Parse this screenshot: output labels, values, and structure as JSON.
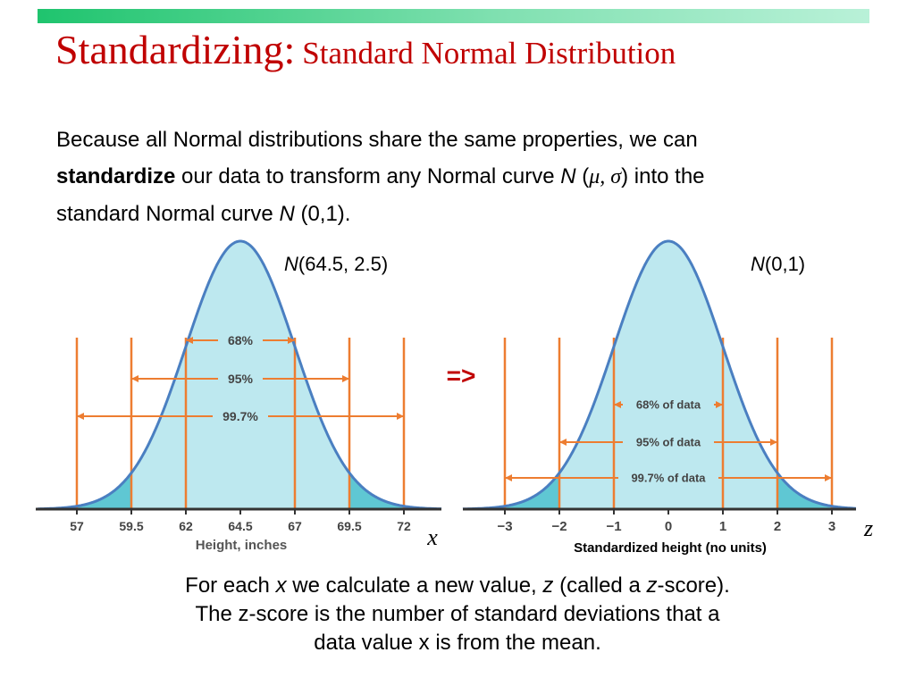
{
  "slide": {
    "title_main": "Standardizing:",
    "title_sub": "Standard Normal Distribution",
    "intro": {
      "part1": "Because all Normal distributions share the same properties, we can",
      "bold": "standardize",
      "part2": "our data to transform any Normal curve",
      "N1": "N",
      "params_open": "(",
      "mu": "μ",
      "comma": ", ",
      "sigma": "σ",
      "params_close": ") into the",
      "part3": "standard Normal curve",
      "N2": "N",
      "part4": "(0,1)."
    },
    "arrow_text": "=>",
    "bottom": {
      "line1_a": "For each",
      "x": "x",
      "line1_b": "we calculate a new value,",
      "z": "z",
      "line1_c": "(called a",
      "z2": "z",
      "line1_d": "-score).",
      "line2": "The z-score is the number of standard deviations that a",
      "line3": "data value x is from the mean."
    }
  },
  "colors": {
    "title": "#c00000",
    "curve": "#4a7fc1",
    "fill_light": "#bde8ef",
    "fill_dark": "#5fc7d3",
    "marker": "#ed7d31",
    "arrow_text": "#c00000"
  },
  "left_curve": {
    "label_N": "N",
    "label_params": "(64.5, 2.5)",
    "ticks": [
      "57",
      "59.5",
      "62",
      "64.5",
      "67",
      "69.5",
      "72"
    ],
    "axis_label": "Height, inches",
    "var_label": "x",
    "bands": [
      "68%",
      "95%",
      "99.7%"
    ]
  },
  "right_curve": {
    "label_N": "N",
    "label_params": "(0,1)",
    "ticks": [
      "−3",
      "−2",
      "−1",
      "0",
      "1",
      "2",
      "3"
    ],
    "axis_label": "Standardized height (no units)",
    "var_label": "z",
    "bands": [
      "68% of data",
      "95% of data",
      "99.7% of data"
    ]
  }
}
